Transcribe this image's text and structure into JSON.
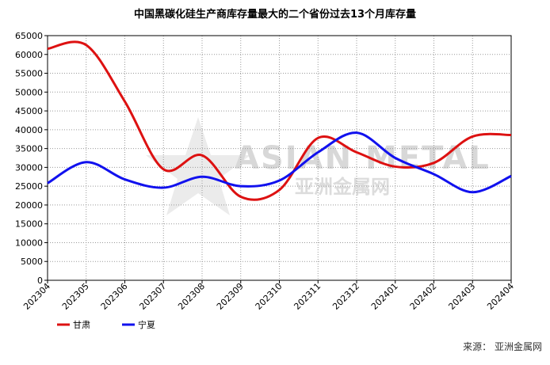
{
  "chart_data": {
    "type": "line",
    "title": "中国黑碳化硅生产商库存量最大的二个省份过去13个月库存量",
    "categories": [
      "202304",
      "202305",
      "202306",
      "202307",
      "202308",
      "202309",
      "202310",
      "202311",
      "202312",
      "202401",
      "202402",
      "202403",
      "202404"
    ],
    "series": [
      {
        "name": "甘肃",
        "color": "#dd1111",
        "values": [
          61500,
          62500,
          47500,
          29500,
          33200,
          22200,
          24000,
          37800,
          34000,
          30200,
          31200,
          38200,
          38600
        ]
      },
      {
        "name": "宁夏",
        "color": "#1111ee",
        "values": [
          25800,
          31400,
          26800,
          24600,
          27500,
          25000,
          26500,
          34000,
          39200,
          32500,
          28200,
          23400,
          27700
        ]
      }
    ],
    "ylim": [
      0,
      65000
    ],
    "yticks": [
      0,
      5000,
      10000,
      15000,
      20000,
      25000,
      30000,
      35000,
      40000,
      45000,
      50000,
      55000,
      60000,
      65000
    ],
    "grid": true,
    "legend": "bottom-left",
    "watermark": {
      "text": "ASIAN METAL",
      "subtext": "亚洲金属网"
    },
    "source": "来源：  亚洲金属网"
  }
}
